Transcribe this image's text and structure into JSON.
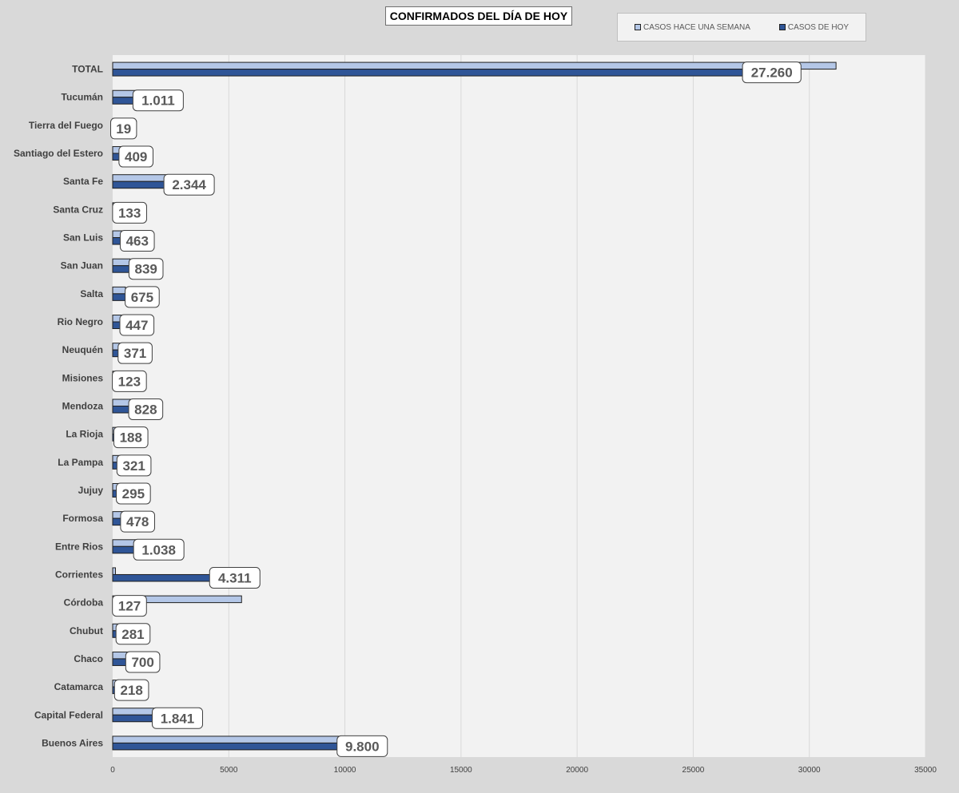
{
  "chart_data": {
    "type": "bar",
    "orientation": "horizontal",
    "title": "CONFIRMADOS DEL DÍA DE HOY",
    "legend_position": "top-right",
    "grid": true,
    "xlim": [
      0,
      35000
    ],
    "x_ticks": [
      0,
      5000,
      10000,
      15000,
      20000,
      25000,
      30000,
      35000
    ],
    "categories": [
      "TOTAL",
      "Tucumán",
      "Tierra del Fuego",
      "Santiago del Estero",
      "Santa Fe",
      "Santa Cruz",
      "San Luis",
      "San Juan",
      "Salta",
      "Rio Negro",
      "Neuquén",
      "Misiones",
      "Mendoza",
      "La Rioja",
      "La Pampa",
      "Jujuy",
      "Formosa",
      "Entre Rios",
      "Corrientes",
      "Córdoba",
      "Chubut",
      "Chaco",
      "Catamarca",
      "Capital Federal",
      "Buenos Aires"
    ],
    "series": [
      {
        "name": "CASOS HACE UNA SEMANA",
        "color": "#b4c7e7",
        "values": [
          31150,
          1150,
          60,
          450,
          2400,
          160,
          450,
          750,
          550,
          450,
          550,
          200,
          900,
          180,
          300,
          280,
          600,
          1150,
          120,
          5550,
          300,
          750,
          350,
          2000,
          10000
        ]
      },
      {
        "name": "CASOS DE HOY",
        "color": "#2f5597",
        "values": [
          27260,
          1011,
          19,
          409,
          2344,
          133,
          463,
          839,
          675,
          447,
          371,
          123,
          828,
          188,
          321,
          295,
          478,
          1038,
          4311,
          127,
          281,
          700,
          218,
          1841,
          9800
        ],
        "labels": [
          "27.260",
          "1.011",
          "19",
          "409",
          "2.344",
          "133",
          "463",
          "839",
          "675",
          "447",
          "371",
          "123",
          "828",
          "188",
          "321",
          "295",
          "478",
          "1.038",
          "4.311",
          "127",
          "281",
          "700",
          "218",
          "1.841",
          "9.800"
        ]
      }
    ]
  },
  "colors": {
    "background": "#d9d9d9",
    "plot_area": "#f2f2f2",
    "gridline": "#d9d9d9",
    "label_text": "#404040",
    "data_label_text": "#595959"
  }
}
